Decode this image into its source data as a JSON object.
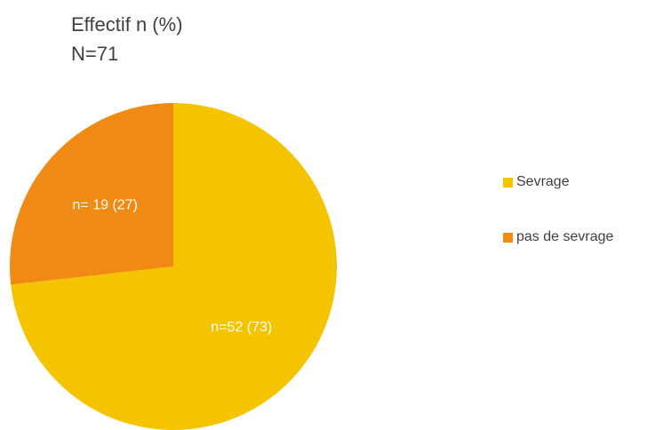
{
  "chart_data": {
    "type": "pie",
    "title": "Effectif n (%)",
    "subtitle": "N=71",
    "categories": [
      "Sevrage",
      "pas de sevrage"
    ],
    "values": [
      52,
      19
    ],
    "value_labels": [
      "n=52 (73)",
      "n= 19 (27)"
    ],
    "colors": [
      "#f5c400",
      "#f08a12"
    ],
    "legend": "right"
  }
}
